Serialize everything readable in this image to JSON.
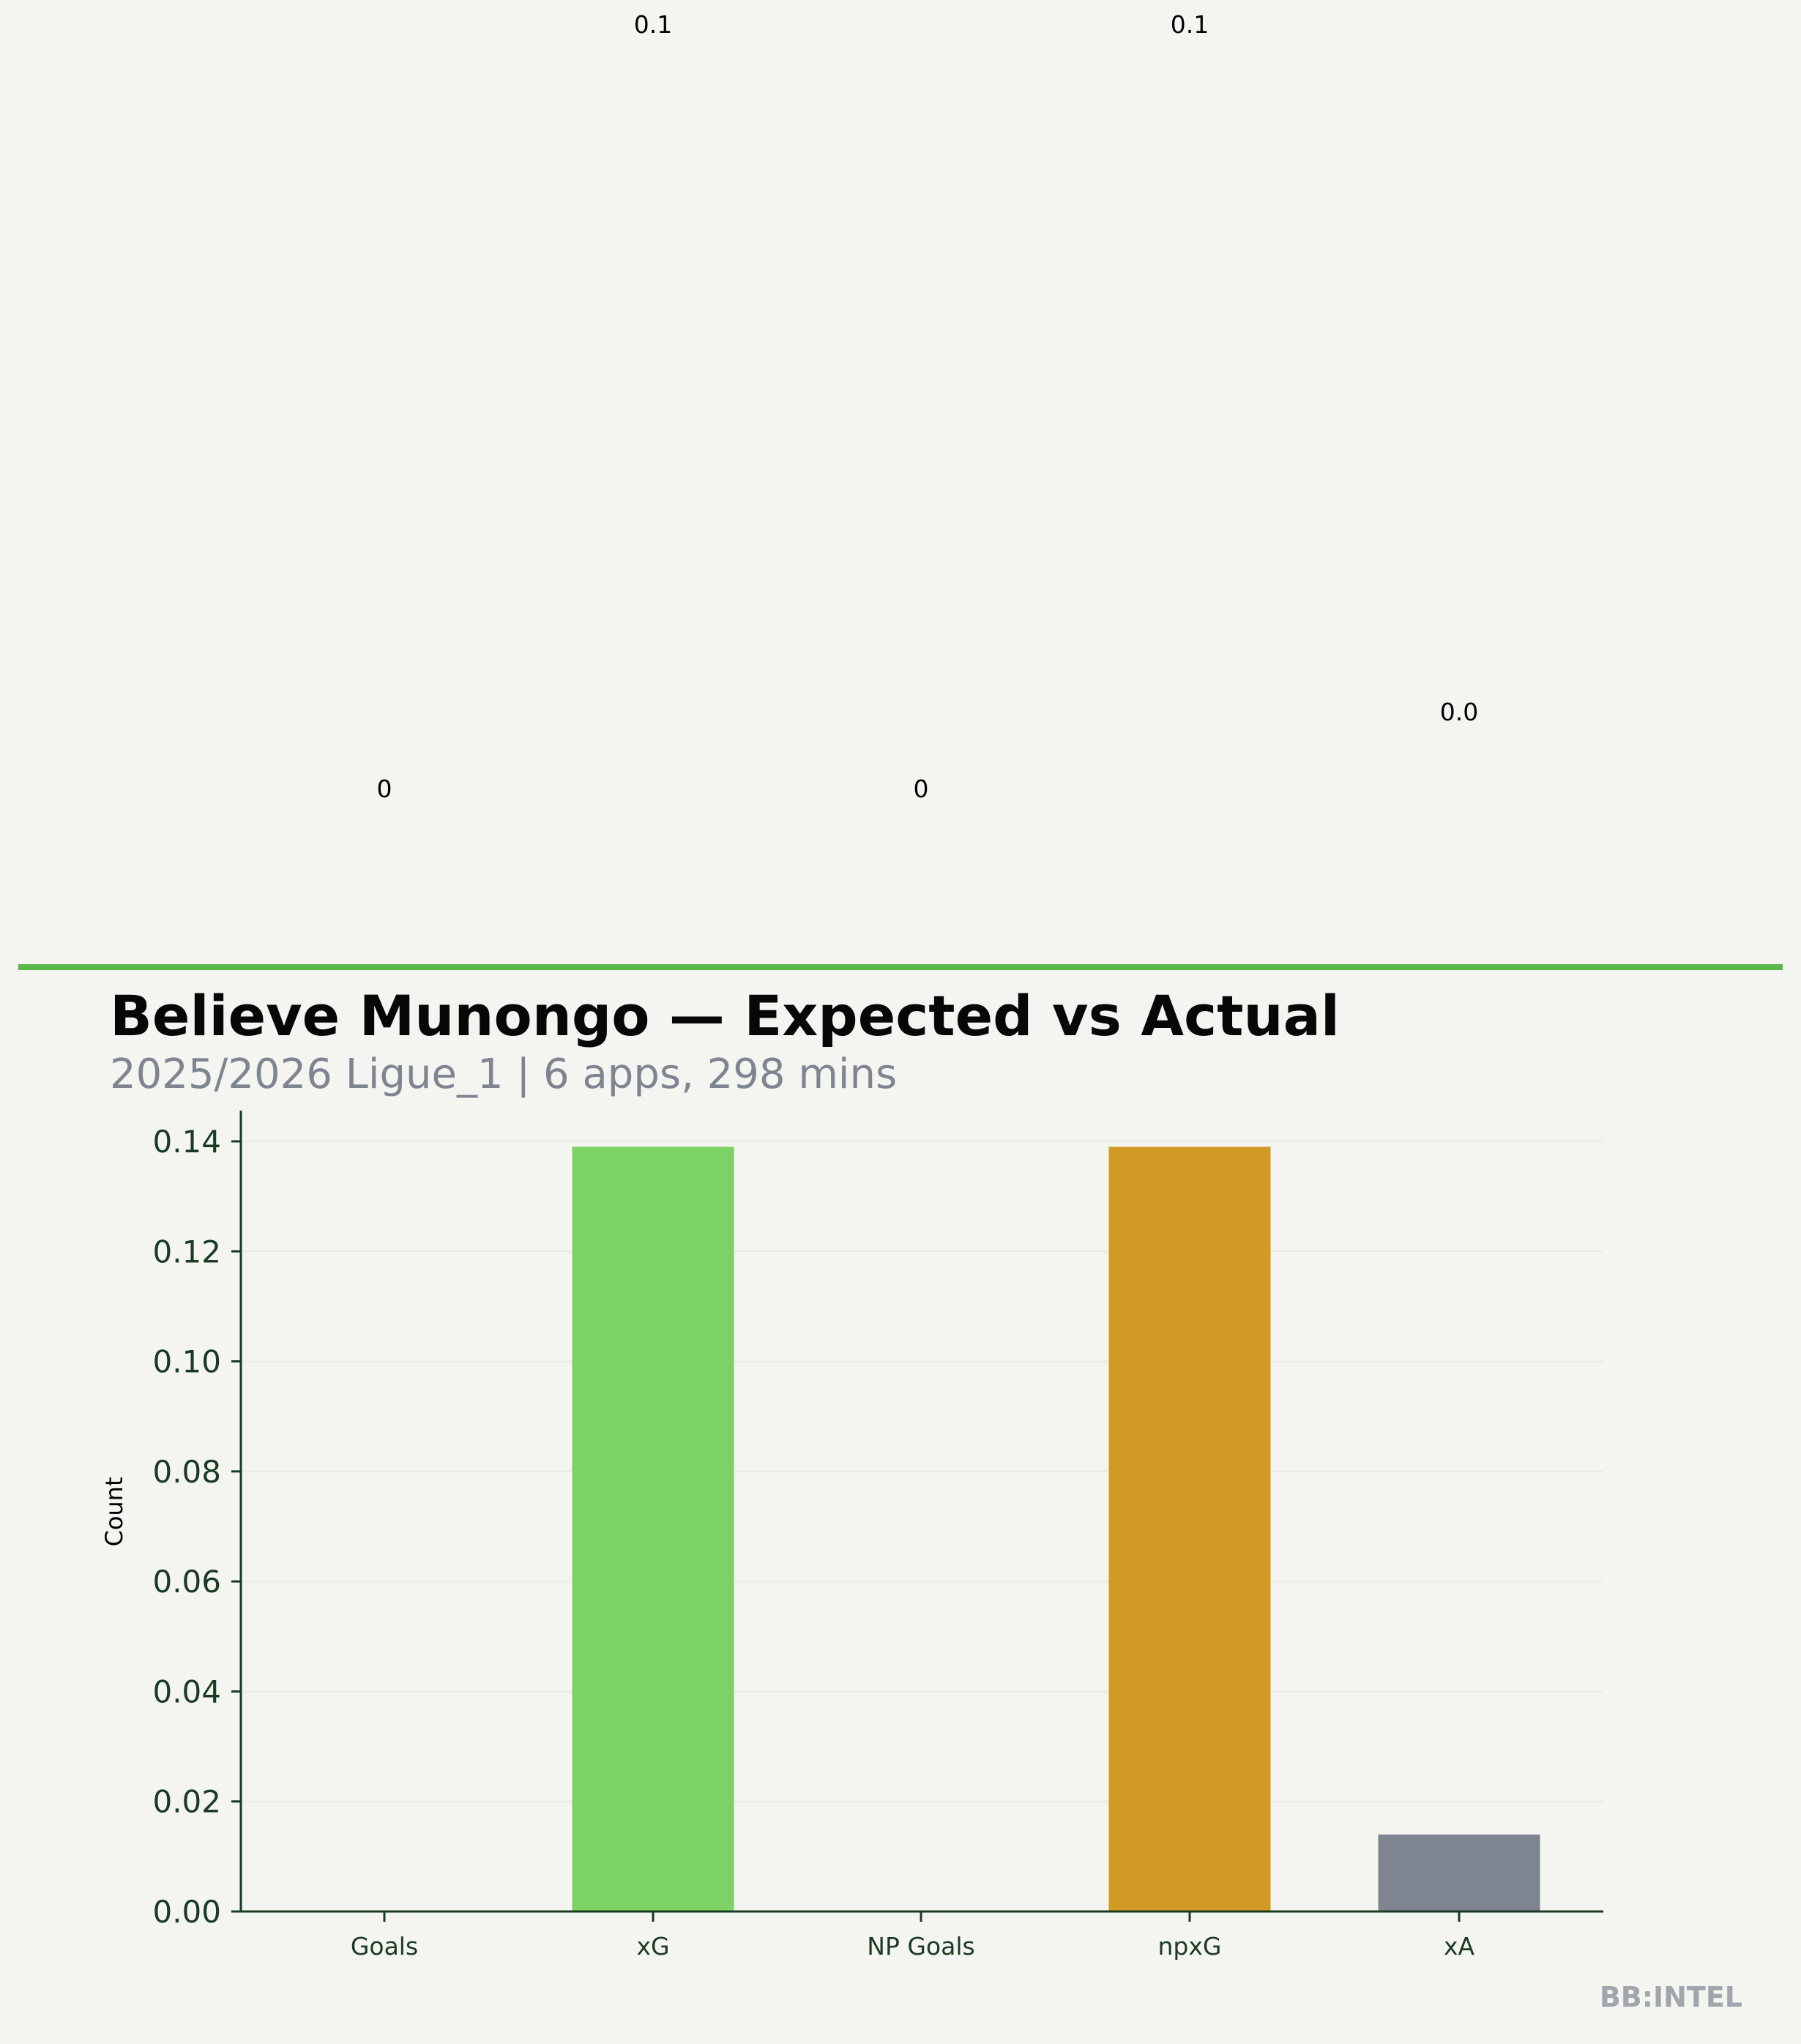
{
  "header": {
    "title": "Believe Munongo — Expected vs Actual",
    "subtitle": "2025/2026 Ligue_1 | 6 apps, 298 mins",
    "accent_color": "#5ab84a"
  },
  "watermark": "BB:INTEL",
  "chart_data": {
    "type": "bar",
    "title": "Believe Munongo — Expected vs Actual",
    "xlabel": "",
    "ylabel": "Count",
    "categories": [
      "Goals",
      "xG",
      "NP Goals",
      "npxG",
      "xA"
    ],
    "values": [
      0,
      0.139,
      0,
      0.139,
      0.014
    ],
    "value_labels": [
      "0",
      "0.1",
      "0",
      "0.1",
      "0.0"
    ],
    "colors": [
      "#7dd266",
      "#7dd266",
      "#d19a24",
      "#d19a24",
      "#7f8590"
    ],
    "ylim": [
      0,
      0.145
    ],
    "yticks": [
      "0.00",
      "0.02",
      "0.04",
      "0.06",
      "0.08",
      "0.10",
      "0.12",
      "0.14"
    ],
    "grid": true
  }
}
